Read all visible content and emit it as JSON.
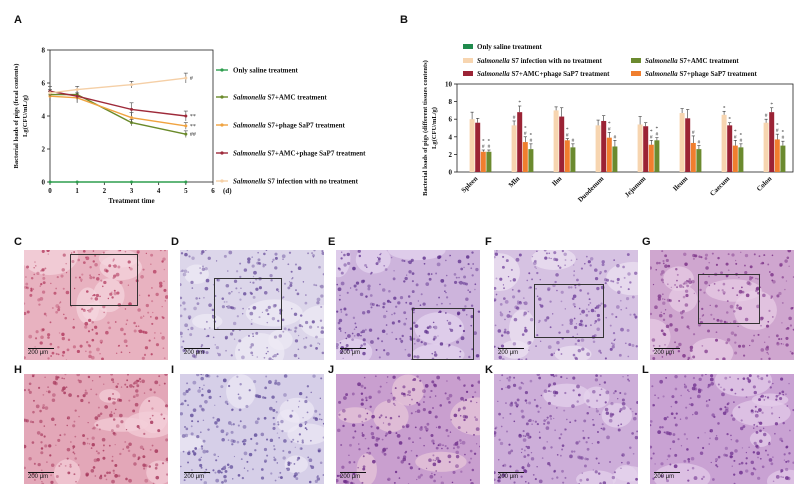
{
  "panels": {
    "A": "A",
    "B": "B",
    "C": "C",
    "D": "D",
    "E": "E",
    "F": "F",
    "G": "G",
    "H": "H",
    "I": "I",
    "J": "J",
    "K": "K",
    "L": "L"
  },
  "scale_bars": {
    "C": "200 μm",
    "D": "200 μm",
    "E": "200 μm",
    "F": "200 μm",
    "G": "200 μm",
    "H": "200 μm",
    "I": "200 μm",
    "J": "200 μm",
    "K": "200 μm",
    "L": "200 μm"
  },
  "chart_data": [
    {
      "type": "line",
      "ylabel_line1": "Bacterial loads of pigs (fecal contents)",
      "ylabel_line2": "Lg(CFU/mL/g)",
      "xlabel": "Treatment time",
      "x_unit": "(d)",
      "xlim": [
        0,
        6
      ],
      "ylim": [
        0,
        8
      ],
      "x_ticks": [
        0,
        1,
        2,
        3,
        4,
        5,
        6
      ],
      "y_ticks": [
        0,
        2,
        4,
        6,
        8
      ],
      "legend_position": "right",
      "series": [
        {
          "name": "Only saline treatment",
          "color": "#2e9e4e",
          "x": [
            0,
            1,
            3,
            5
          ],
          "y": [
            0,
            0,
            0,
            0
          ],
          "err": [
            0,
            0,
            0,
            0
          ],
          "marks": ""
        },
        {
          "name": "Salmonella S7+AMC treatment",
          "color": "#6a8a2a",
          "x": [
            0,
            1,
            3,
            5
          ],
          "y": [
            5.3,
            5.3,
            3.6,
            2.9
          ],
          "err": [
            0.2,
            0.3,
            0.2,
            0.2
          ],
          "marks": "##"
        },
        {
          "name": "Salmonella S7+phage SaP7 treatment",
          "color": "#f0a340",
          "x": [
            0,
            1,
            3,
            5
          ],
          "y": [
            5.2,
            5.1,
            3.9,
            3.4
          ],
          "err": [
            0.3,
            0.3,
            0.3,
            0.2
          ],
          "marks": "**"
        },
        {
          "name": "Salmonella S7+AMC+phage SaP7 treatment",
          "color": "#9e2a3a",
          "x": [
            0,
            1,
            3,
            5
          ],
          "y": [
            5.5,
            5.2,
            4.4,
            4.0
          ],
          "err": [
            0.3,
            0.4,
            0.4,
            0.3
          ],
          "marks": "**"
        },
        {
          "name": "Salmonella S7 infection with no treatment",
          "color": "#f5cfa6",
          "x": [
            0,
            1,
            3,
            5
          ],
          "y": [
            5.4,
            5.6,
            5.9,
            6.3
          ],
          "err": [
            0.2,
            0.2,
            0.2,
            0.3
          ],
          "marks": "#"
        }
      ]
    },
    {
      "type": "bar",
      "ylabel_line1": "Bacterial loads of pigs (different tissues contents)",
      "ylabel_line2": "Lg(CFU/mL/g)",
      "ylim": [
        0,
        10
      ],
      "y_ticks": [
        0,
        2,
        4,
        6,
        8,
        10
      ],
      "categories": [
        "Spleen",
        "Mln",
        "Ilm",
        "Duodenum",
        "Jejunum",
        "Ileum",
        "Caecum",
        "Colon"
      ],
      "legend_position": "top",
      "series": [
        {
          "name": "Only saline treatment",
          "color": "#1f8a4c",
          "values": [
            0,
            0,
            0,
            0,
            0,
            0,
            0,
            0
          ],
          "err": [
            0,
            0,
            0,
            0,
            0,
            0,
            0,
            0
          ]
        },
        {
          "name": "Salmonella S7 infection with no treatment",
          "color": "#f7d5b0",
          "values": [
            6.0,
            5.3,
            7.0,
            5.3,
            5.4,
            6.7,
            6.5,
            5.6
          ],
          "err": [
            0.8,
            0.5,
            0.4,
            0.6,
            0.9,
            0.5,
            0.4,
            0.4
          ]
        },
        {
          "name": "Salmonella S7+AMC+phage SaP7 treatment",
          "color": "#9b2335",
          "values": [
            5.6,
            6.8,
            6.3,
            5.8,
            5.2,
            6.1,
            5.3,
            6.8
          ],
          "err": [
            0.5,
            0.7,
            1.0,
            0.6,
            0.4,
            1.0,
            0.3,
            0.5
          ]
        },
        {
          "name": "Salmonella S7+phage SaP7 treatment",
          "color": "#f07e2e",
          "values": [
            2.3,
            3.4,
            3.6,
            3.9,
            3.1,
            3.3,
            3.0,
            3.7
          ],
          "err": [
            0.2,
            0.6,
            0.2,
            0.6,
            0.5,
            0.8,
            0.6,
            0.6
          ]
        },
        {
          "name": "Salmonella S7+AMC treatment",
          "color": "#6b8a2f",
          "values": [
            2.3,
            2.6,
            2.8,
            2.9,
            3.6,
            2.6,
            2.8,
            3.0
          ],
          "err": [
            0.2,
            0.6,
            0.4,
            0.7,
            0.3,
            0.4,
            0.4,
            0.5
          ]
        }
      ],
      "marks": {
        "no_treatment": [
          "",
          "#",
          "",
          "",
          "",
          "",
          "*",
          "#"
        ],
        "amc_phage": [
          "",
          "*",
          "",
          "",
          "",
          "",
          "*",
          "*"
        ],
        "phage": [
          "#*",
          "#*",
          "#*",
          "#*",
          "#*",
          "#",
          "#*",
          "#*"
        ],
        "amc": [
          "#*",
          "#*",
          "#",
          "#",
          "#*",
          "#",
          "#*",
          "#*"
        ]
      }
    }
  ],
  "histology": {
    "C": {
      "base": "#e8b2c0",
      "spot": "#b23a5e",
      "alt": "#f5d6de"
    },
    "D": {
      "base": "#dcd6ea",
      "spot": "#6a4f9c",
      "alt": "#eeebf5"
    },
    "E": {
      "base": "#cdb4dc",
      "spot": "#5d2f8c",
      "alt": "#e6d6ef"
    },
    "F": {
      "base": "#d6c2e2",
      "spot": "#6e3f9a",
      "alt": "#ece2f2"
    },
    "G": {
      "base": "#cfa6cf",
      "spot": "#7a2f86",
      "alt": "#e8cfe6"
    },
    "H": {
      "base": "#e3a7b8",
      "spot": "#a5355a",
      "alt": "#f3cfd8"
    },
    "I": {
      "base": "#d6cfe8",
      "spot": "#5e4a98",
      "alt": "#ece8f5"
    },
    "J": {
      "base": "#c99fcf",
      "spot": "#6b2a88",
      "alt": "#e8c9d8"
    },
    "K": {
      "base": "#cdaed9",
      "spot": "#6a338f",
      "alt": "#e6d3ec"
    },
    "L": {
      "base": "#c9a2d3",
      "spot": "#6e2f8e",
      "alt": "#e4cde9"
    }
  }
}
